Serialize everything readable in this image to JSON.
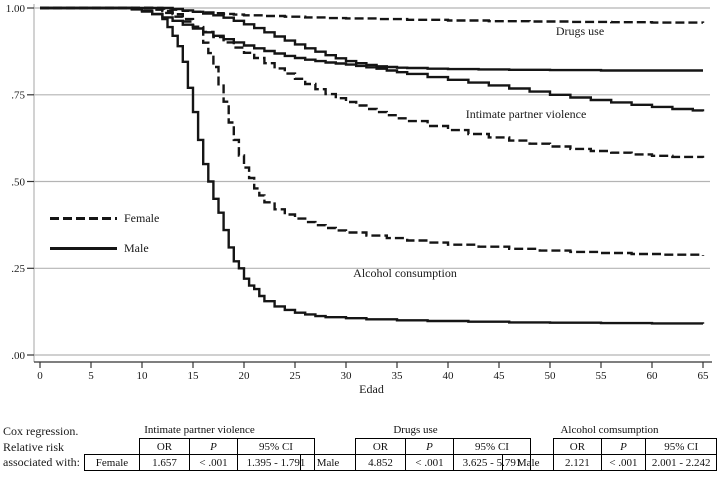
{
  "figure": {
    "legend": {
      "female_label": "Female",
      "male_label": "Male"
    },
    "annotations": {
      "drugs": "Drugs use",
      "ipv": "Intimate partner violence",
      "alcohol": "Alcohol consumption"
    },
    "colors": {
      "line": "#151515",
      "grid": "#b4b4b4",
      "axis": "#333333"
    }
  },
  "chart_data": {
    "type": "line",
    "subtype": "kaplan-meier-step-survival",
    "title": "",
    "xlabel": "Edad",
    "ylabel": "",
    "xlim": [
      0,
      65
    ],
    "ylim": [
      0,
      1
    ],
    "x_ticks": [
      0,
      5,
      10,
      15,
      20,
      25,
      30,
      35,
      40,
      45,
      50,
      55,
      60,
      65
    ],
    "y_ticks": [
      {
        "value": 1.0,
        "label": "1.00"
      },
      {
        "value": 0.75,
        "label": ".75"
      },
      {
        "value": 0.5,
        "label": ".50"
      },
      {
        "value": 0.25,
        "label": ".25"
      },
      {
        "value": 0.0,
        "label": ".00"
      }
    ],
    "grid": "horizontal",
    "legend_position": "left-middle",
    "series": [
      {
        "name": "Drugs use - Female",
        "group": "Drugs use",
        "sex": "Female",
        "style": "dashed",
        "points": [
          [
            0,
            1
          ],
          [
            11,
            1
          ],
          [
            12,
            0.998
          ],
          [
            13,
            0.995
          ],
          [
            14,
            0.992
          ],
          [
            15,
            0.989
          ],
          [
            16,
            0.987
          ],
          [
            17,
            0.985
          ],
          [
            18,
            0.983
          ],
          [
            19,
            0.981
          ],
          [
            20,
            0.979
          ],
          [
            22,
            0.977
          ],
          [
            24,
            0.975
          ],
          [
            26,
            0.973
          ],
          [
            28,
            0.971
          ],
          [
            30,
            0.97
          ],
          [
            33,
            0.968
          ],
          [
            36,
            0.966
          ],
          [
            40,
            0.964
          ],
          [
            44,
            0.962
          ],
          [
            48,
            0.961
          ],
          [
            52,
            0.96
          ],
          [
            56,
            0.959
          ],
          [
            60,
            0.958
          ],
          [
            65,
            0.957
          ]
        ]
      },
      {
        "name": "Drugs use - Male",
        "group": "Drugs use",
        "sex": "Male",
        "style": "solid",
        "points": [
          [
            0,
            1
          ],
          [
            12,
            1
          ],
          [
            13,
            0.997
          ],
          [
            14,
            0.993
          ],
          [
            15,
            0.989
          ],
          [
            16,
            0.984
          ],
          [
            17,
            0.979
          ],
          [
            18,
            0.972
          ],
          [
            19,
            0.963
          ],
          [
            20,
            0.953
          ],
          [
            21,
            0.942
          ],
          [
            22,
            0.93
          ],
          [
            23,
            0.918
          ],
          [
            24,
            0.906
          ],
          [
            25,
            0.895
          ],
          [
            26,
            0.884
          ],
          [
            27,
            0.874
          ],
          [
            28,
            0.864
          ],
          [
            29,
            0.855
          ],
          [
            30,
            0.847
          ],
          [
            31,
            0.841
          ],
          [
            32,
            0.836
          ],
          [
            33,
            0.832
          ],
          [
            34,
            0.83
          ],
          [
            35,
            0.828
          ],
          [
            36,
            0.827
          ],
          [
            38,
            0.825
          ],
          [
            40,
            0.824
          ],
          [
            43,
            0.823
          ],
          [
            46,
            0.822
          ],
          [
            50,
            0.821
          ],
          [
            55,
            0.82
          ],
          [
            60,
            0.82
          ],
          [
            65,
            0.82
          ]
        ]
      },
      {
        "name": "Intimate partner violence - Male",
        "group": "Intimate partner violence",
        "sex": "Male",
        "style": "solid",
        "points": [
          [
            0,
            1
          ],
          [
            8,
            1
          ],
          [
            9,
            0.996
          ],
          [
            10,
            0.99
          ],
          [
            11,
            0.982
          ],
          [
            12,
            0.973
          ],
          [
            13,
            0.963
          ],
          [
            14,
            0.952
          ],
          [
            15,
            0.941
          ],
          [
            16,
            0.93
          ],
          [
            17,
            0.92
          ],
          [
            18,
            0.91
          ],
          [
            19,
            0.901
          ],
          [
            20,
            0.892
          ],
          [
            21,
            0.884
          ],
          [
            22,
            0.876
          ],
          [
            23,
            0.869
          ],
          [
            24,
            0.862
          ],
          [
            25,
            0.856
          ],
          [
            26,
            0.851
          ],
          [
            27,
            0.847
          ],
          [
            28,
            0.843
          ],
          [
            29,
            0.84
          ],
          [
            30,
            0.837
          ],
          [
            31,
            0.833
          ],
          [
            32,
            0.829
          ],
          [
            33,
            0.825
          ],
          [
            34,
            0.82
          ],
          [
            35,
            0.815
          ],
          [
            36,
            0.81
          ],
          [
            38,
            0.801
          ],
          [
            40,
            0.793
          ],
          [
            42,
            0.785
          ],
          [
            44,
            0.777
          ],
          [
            46,
            0.768
          ],
          [
            48,
            0.759
          ],
          [
            50,
            0.75
          ],
          [
            52,
            0.742
          ],
          [
            54,
            0.735
          ],
          [
            56,
            0.728
          ],
          [
            58,
            0.721
          ],
          [
            60,
            0.715
          ],
          [
            62,
            0.709
          ],
          [
            64,
            0.705
          ],
          [
            65,
            0.702
          ]
        ]
      },
      {
        "name": "Intimate partner violence - Female",
        "group": "Intimate partner violence",
        "sex": "Female",
        "style": "dashed",
        "points": [
          [
            0,
            1
          ],
          [
            10,
            1
          ],
          [
            11,
            0.995
          ],
          [
            12,
            0.986
          ],
          [
            13,
            0.975
          ],
          [
            14,
            0.961
          ],
          [
            15,
            0.946
          ],
          [
            16,
            0.931
          ],
          [
            17,
            0.916
          ],
          [
            18,
            0.901
          ],
          [
            19,
            0.886
          ],
          [
            20,
            0.871
          ],
          [
            21,
            0.856
          ],
          [
            22,
            0.841
          ],
          [
            23,
            0.826
          ],
          [
            24,
            0.811
          ],
          [
            25,
            0.796
          ],
          [
            26,
            0.781
          ],
          [
            27,
            0.766
          ],
          [
            28,
            0.752
          ],
          [
            29,
            0.74
          ],
          [
            30,
            0.729
          ],
          [
            31,
            0.719
          ],
          [
            32,
            0.709
          ],
          [
            33,
            0.7
          ],
          [
            34,
            0.691
          ],
          [
            35,
            0.682
          ],
          [
            36,
            0.674
          ],
          [
            38,
            0.66
          ],
          [
            40,
            0.648
          ],
          [
            42,
            0.637
          ],
          [
            44,
            0.627
          ],
          [
            46,
            0.618
          ],
          [
            48,
            0.609
          ],
          [
            50,
            0.601
          ],
          [
            52,
            0.594
          ],
          [
            54,
            0.588
          ],
          [
            56,
            0.583
          ],
          [
            58,
            0.578
          ],
          [
            60,
            0.574
          ],
          [
            62,
            0.571
          ],
          [
            65,
            0.568
          ]
        ]
      },
      {
        "name": "Alcohol consumption - Female",
        "group": "Alcohol consumption",
        "sex": "Female",
        "style": "dashed",
        "points": [
          [
            0,
            1
          ],
          [
            10,
            1
          ],
          [
            11,
            0.997
          ],
          [
            12,
            0.991
          ],
          [
            13,
            0.982
          ],
          [
            14,
            0.968
          ],
          [
            15,
            0.945
          ],
          [
            16,
            0.9
          ],
          [
            16.5,
            0.87
          ],
          [
            17,
            0.83
          ],
          [
            17.5,
            0.78
          ],
          [
            18,
            0.73
          ],
          [
            18.5,
            0.67
          ],
          [
            19,
            0.62
          ],
          [
            19.5,
            0.575
          ],
          [
            20,
            0.54
          ],
          [
            20.5,
            0.51
          ],
          [
            21,
            0.48
          ],
          [
            21.5,
            0.46
          ],
          [
            22,
            0.44
          ],
          [
            23,
            0.42
          ],
          [
            24,
            0.405
          ],
          [
            25,
            0.393
          ],
          [
            26,
            0.383
          ],
          [
            27,
            0.374
          ],
          [
            28,
            0.366
          ],
          [
            29,
            0.359
          ],
          [
            30,
            0.353
          ],
          [
            32,
            0.344
          ],
          [
            34,
            0.337
          ],
          [
            36,
            0.33
          ],
          [
            38,
            0.324
          ],
          [
            40,
            0.318
          ],
          [
            43,
            0.312
          ],
          [
            46,
            0.306
          ],
          [
            49,
            0.301
          ],
          [
            52,
            0.297
          ],
          [
            55,
            0.294
          ],
          [
            58,
            0.291
          ],
          [
            61,
            0.289
          ],
          [
            65,
            0.286
          ]
        ]
      },
      {
        "name": "Alcohol consumption - Male",
        "group": "Alcohol consumption",
        "sex": "Male",
        "style": "solid",
        "points": [
          [
            0,
            1
          ],
          [
            8,
            1
          ],
          [
            9,
            0.997
          ],
          [
            10,
            0.992
          ],
          [
            11,
            0.983
          ],
          [
            12,
            0.968
          ],
          [
            12.5,
            0.945
          ],
          [
            13,
            0.92
          ],
          [
            13.5,
            0.89
          ],
          [
            14,
            0.845
          ],
          [
            14.5,
            0.77
          ],
          [
            15,
            0.7
          ],
          [
            15.5,
            0.62
          ],
          [
            16,
            0.55
          ],
          [
            16.5,
            0.5
          ],
          [
            17,
            0.45
          ],
          [
            17.5,
            0.41
          ],
          [
            18,
            0.36
          ],
          [
            18.5,
            0.31
          ],
          [
            19,
            0.27
          ],
          [
            19.5,
            0.25
          ],
          [
            20,
            0.22
          ],
          [
            20.5,
            0.2
          ],
          [
            21,
            0.19
          ],
          [
            21.5,
            0.17
          ],
          [
            22,
            0.155
          ],
          [
            23,
            0.14
          ],
          [
            24,
            0.13
          ],
          [
            25,
            0.122
          ],
          [
            26,
            0.117
          ],
          [
            27,
            0.112
          ],
          [
            28,
            0.109
          ],
          [
            30,
            0.106
          ],
          [
            32,
            0.103
          ],
          [
            35,
            0.1
          ],
          [
            38,
            0.098
          ],
          [
            42,
            0.096
          ],
          [
            46,
            0.094
          ],
          [
            50,
            0.093
          ],
          [
            55,
            0.092
          ],
          [
            60,
            0.091
          ],
          [
            65,
            0.09
          ]
        ]
      }
    ]
  },
  "note": {
    "lines": [
      "Cox regression.",
      "Relative risk",
      "associated with:"
    ]
  },
  "tables": [
    {
      "title": "Intimate partner violence",
      "columns": [
        "OR",
        "P",
        "95% CI"
      ],
      "row": {
        "group": "Female",
        "or": "1.657",
        "p": "< .001",
        "ci": "1.395 - 1.791"
      }
    },
    {
      "title": "Drugs use",
      "columns": [
        "OR",
        "P",
        "95% CI"
      ],
      "row": {
        "group": "Male",
        "or": "4.852",
        "p": "< .001",
        "ci": "3.625 - 5.791"
      }
    },
    {
      "title": "Alcohol comsumption",
      "columns": [
        "OR",
        "P",
        "95% CI"
      ],
      "row": {
        "group": "Male",
        "or": "2.121",
        "p": "< .001",
        "ci": "2.001 - 2.242"
      }
    }
  ]
}
